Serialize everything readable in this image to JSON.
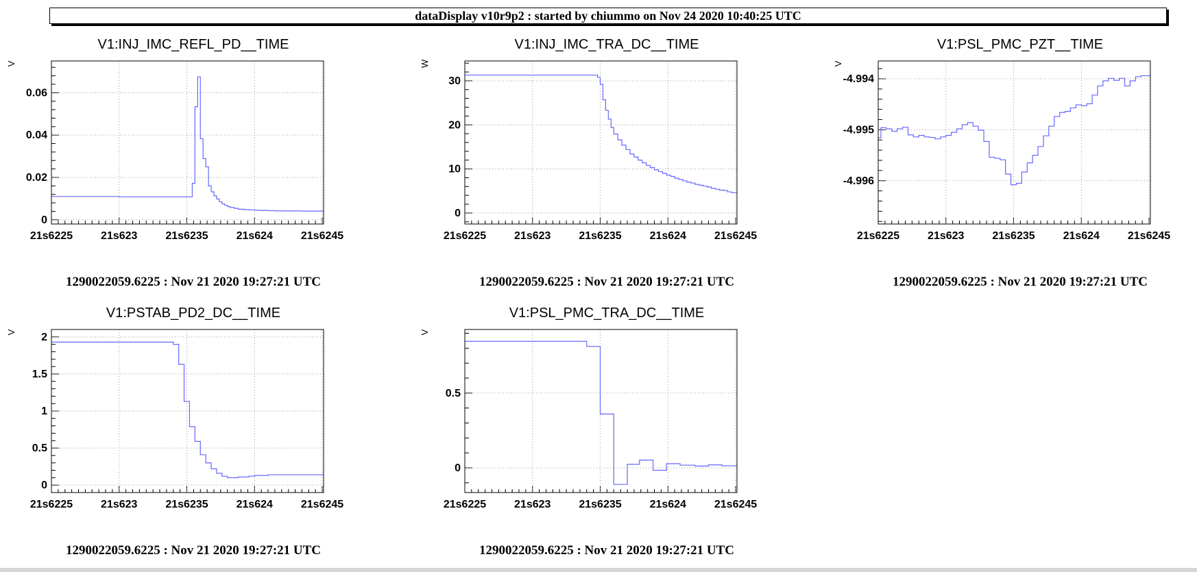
{
  "banner": {
    "title": "dataDisplay v10r9p2 : started by chiummo on Nov 24 2020 10:40:25 UTC"
  },
  "chart_data": [
    {
      "type": "line",
      "title": "V1:INJ_IMC_REFL_PD__TIME",
      "ylabel": "V",
      "xlabel": "1290022059.6225 : Nov 21 2020 19:27:21 UTC",
      "x": [
        21.6225,
        21.623,
        21.62351,
        21.62353,
        21.62354,
        21.62356,
        21.62358,
        21.6236,
        21.62362,
        21.62364,
        21.62366,
        21.62368,
        21.6237,
        21.62372,
        21.62374,
        21.62376,
        21.62378,
        21.6238,
        21.62382,
        21.62385,
        21.62388,
        21.62392,
        21.62396,
        21.624,
        21.62405,
        21.6241,
        21.62415,
        21.62435
      ],
      "values": [
        0.011,
        0.0108,
        0.0108,
        0.0108,
        0.0172,
        0.0534,
        0.0675,
        0.0383,
        0.0289,
        0.025,
        0.016,
        0.0132,
        0.0113,
        0.0098,
        0.0085,
        0.0075,
        0.0068,
        0.0062,
        0.0058,
        0.0054,
        0.005,
        0.0048,
        0.0047,
        0.0045,
        0.0044,
        0.0043,
        0.0042,
        0.0041
      ],
      "xlim": [
        21.6225,
        21.62451
      ],
      "ylim": [
        -0.002,
        0.075
      ],
      "x_ticks": [
        {
          "v": 21.6225,
          "label": "21s6225"
        },
        {
          "v": 21.623,
          "label": "21s623"
        },
        {
          "v": 21.6235,
          "label": "21s6235"
        },
        {
          "v": 21.624,
          "label": "21s624"
        },
        {
          "v": 21.6245,
          "label": "21s6245"
        }
      ],
      "y_ticks": [
        {
          "v": 0,
          "label": "0"
        },
        {
          "v": 0.02,
          "label": "0.02"
        },
        {
          "v": 0.04,
          "label": "0.04"
        },
        {
          "v": 0.06,
          "label": "0.06"
        }
      ],
      "grid": true,
      "line_color": "#6666ff"
    },
    {
      "type": "line",
      "title": "V1:INJ_IMC_TRA_DC__TIME",
      "ylabel": "W",
      "xlabel": "1290022059.6225 : Nov 21 2020 19:27:21 UTC",
      "x": [
        21.6225,
        21.62345,
        21.62348,
        21.6235,
        21.62352,
        21.62354,
        21.62356,
        21.62358,
        21.6236,
        21.62363,
        21.62366,
        21.62369,
        21.62372,
        21.62375,
        21.62378,
        21.62381,
        21.62384,
        21.62387,
        21.6239,
        21.62393,
        21.62396,
        21.62399,
        21.62402,
        21.62405,
        21.62408,
        21.62411,
        21.62414,
        21.62417,
        21.6242,
        21.62423,
        21.62426,
        21.62429,
        21.62432,
        21.62435,
        21.62438,
        21.62441,
        21.62444,
        21.62447
      ],
      "values": [
        31.3,
        31.3,
        30.8,
        29.2,
        25.7,
        23.3,
        21.3,
        19.4,
        17.9,
        16.6,
        15.4,
        14.4,
        13.4,
        12.7,
        12.0,
        11.4,
        10.8,
        10.3,
        9.8,
        9.4,
        9.0,
        8.6,
        8.3,
        7.9,
        7.6,
        7.3,
        7.0,
        6.8,
        6.5,
        6.3,
        6.1,
        5.9,
        5.6,
        5.4,
        5.2,
        5.1,
        4.8,
        4.6
      ],
      "xlim": [
        21.6225,
        21.62451
      ],
      "ylim": [
        -2.5,
        34.5
      ],
      "x_ticks": [
        {
          "v": 21.6225,
          "label": "21s6225"
        },
        {
          "v": 21.623,
          "label": "21s623"
        },
        {
          "v": 21.6235,
          "label": "21s6235"
        },
        {
          "v": 21.624,
          "label": "21s624"
        },
        {
          "v": 21.6245,
          "label": "21s6245"
        }
      ],
      "y_ticks": [
        {
          "v": 0,
          "label": "0"
        },
        {
          "v": 10,
          "label": "10"
        },
        {
          "v": 20,
          "label": "20"
        },
        {
          "v": 30,
          "label": "30"
        }
      ],
      "grid": true,
      "line_color": "#6666ff"
    },
    {
      "type": "line",
      "title": "V1:PSL_PMC_PZT__TIME",
      "ylabel": "V",
      "xlabel": "1290022059.6225 : Nov 21 2020 19:27:21 UTC",
      "x": [
        21.6225,
        21.62252,
        21.62256,
        21.6226,
        21.62264,
        21.62268,
        21.62272,
        21.62276,
        21.6228,
        21.62284,
        21.62288,
        21.62292,
        21.62296,
        21.623,
        21.62304,
        21.62308,
        21.62312,
        21.62316,
        21.6232,
        21.62324,
        21.62328,
        21.62332,
        21.62336,
        21.6234,
        21.62344,
        21.62348,
        21.62352,
        21.62356,
        21.6236,
        21.62364,
        21.62368,
        21.62372,
        21.62376,
        21.6238,
        21.62384,
        21.62388,
        21.62392,
        21.62396,
        21.624,
        21.62404,
        21.62408,
        21.62412,
        21.62416,
        21.6242,
        21.62424,
        21.62428,
        21.62432,
        21.62436,
        21.6244,
        21.62444
      ],
      "values": [
        -4.99516,
        -4.99496,
        -4.99498,
        -4.99503,
        -4.99498,
        -4.99495,
        -4.9951,
        -4.99514,
        -4.99511,
        -4.99514,
        -4.99515,
        -4.99518,
        -4.99514,
        -4.99511,
        -4.99505,
        -4.99498,
        -4.9949,
        -4.99486,
        -4.99493,
        -4.99501,
        -4.99523,
        -4.99554,
        -4.99556,
        -4.99559,
        -4.99587,
        -4.99608,
        -4.99605,
        -4.99583,
        -4.99565,
        -4.9955,
        -4.99533,
        -4.99512,
        -4.99493,
        -4.99474,
        -4.99466,
        -4.99464,
        -4.99457,
        -4.99451,
        -4.99453,
        -4.99449,
        -4.99432,
        -4.99414,
        -4.99404,
        -4.99399,
        -4.99403,
        -4.99399,
        -4.99414,
        -4.99404,
        -4.99396,
        -4.99394
      ],
      "xlim": [
        21.6225,
        21.62451
      ],
      "ylim": [
        -4.99685,
        -4.99365
      ],
      "x_ticks": [
        {
          "v": 21.6225,
          "label": "21s6225"
        },
        {
          "v": 21.623,
          "label": "21s623"
        },
        {
          "v": 21.6235,
          "label": "21s6235"
        },
        {
          "v": 21.624,
          "label": "21s624"
        },
        {
          "v": 21.6245,
          "label": "21s6245"
        }
      ],
      "y_ticks": [
        {
          "v": -4.996,
          "label": "-4.996"
        },
        {
          "v": -4.995,
          "label": "-4.995"
        },
        {
          "v": -4.994,
          "label": "-4.994"
        }
      ],
      "grid": true,
      "line_color": "#6666ff"
    },
    {
      "type": "line",
      "title": "V1:PSTAB_PD2_DC__TIME",
      "ylabel": "V",
      "xlabel": "1290022059.6225 : Nov 21 2020 19:27:21 UTC",
      "x": [
        21.6225,
        21.62335,
        21.6234,
        21.62344,
        21.62348,
        21.62352,
        21.62356,
        21.6236,
        21.62364,
        21.62368,
        21.62372,
        21.62376,
        21.6238,
        21.62384,
        21.62388,
        21.62392,
        21.62396,
        21.624,
        21.62404,
        21.6241,
        21.62418
      ],
      "values": [
        1.93,
        1.93,
        1.9,
        1.63,
        1.13,
        0.79,
        0.59,
        0.41,
        0.3,
        0.22,
        0.16,
        0.12,
        0.1,
        0.1,
        0.11,
        0.11,
        0.12,
        0.13,
        0.13,
        0.14,
        0.14
      ],
      "xlim": [
        21.6225,
        21.62451
      ],
      "ylim": [
        -0.1,
        2.1
      ],
      "x_ticks": [
        {
          "v": 21.6225,
          "label": "21s6225"
        },
        {
          "v": 21.623,
          "label": "21s623"
        },
        {
          "v": 21.6235,
          "label": "21s6235"
        },
        {
          "v": 21.624,
          "label": "21s624"
        },
        {
          "v": 21.6245,
          "label": "21s6245"
        }
      ],
      "y_ticks": [
        {
          "v": 0,
          "label": "0"
        },
        {
          "v": 0.5,
          "label": "0.5"
        },
        {
          "v": 1,
          "label": "1"
        },
        {
          "v": 1.5,
          "label": "1.5"
        },
        {
          "v": 2,
          "label": "2"
        }
      ],
      "grid": true,
      "line_color": "#6666ff"
    },
    {
      "type": "line",
      "title": "V1:PSL_PMC_TRA_DC__TIME",
      "ylabel": "V",
      "xlabel": "1290022059.6225 : Nov 21 2020 19:27:21 UTC",
      "x": [
        21.6225,
        21.6234,
        21.6235,
        21.6236,
        21.6237,
        21.62379,
        21.62389,
        21.62399,
        21.62409,
        21.6242,
        21.6243,
        21.6244
      ],
      "values": [
        0.846,
        0.812,
        0.36,
        -0.111,
        0.024,
        0.052,
        -0.016,
        0.028,
        0.018,
        0.012,
        0.02,
        0.014
      ],
      "xlim": [
        21.6225,
        21.62451
      ],
      "ylim": [
        -0.165,
        0.925
      ],
      "x_ticks": [
        {
          "v": 21.6225,
          "label": "21s6225"
        },
        {
          "v": 21.623,
          "label": "21s623"
        },
        {
          "v": 21.6235,
          "label": "21s6235"
        },
        {
          "v": 21.624,
          "label": "21s624"
        },
        {
          "v": 21.6245,
          "label": "21s6245"
        }
      ],
      "y_ticks": [
        {
          "v": 0,
          "label": "0"
        },
        {
          "v": 0.5,
          "label": "0.5"
        }
      ],
      "grid": true,
      "line_color": "#6666ff"
    }
  ]
}
